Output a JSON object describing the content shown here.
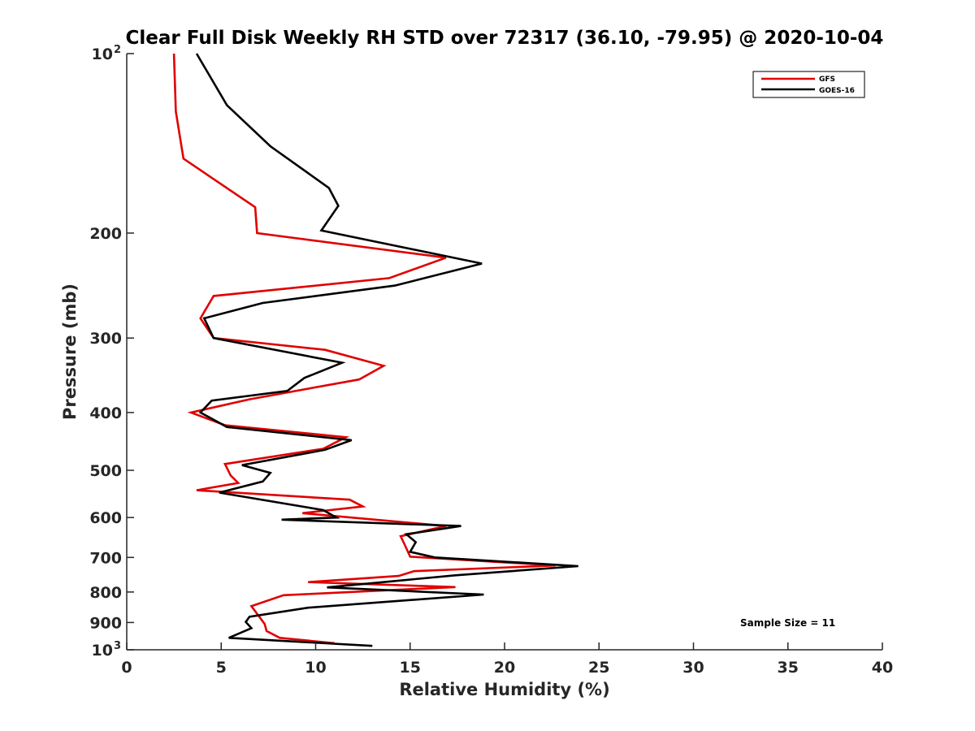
{
  "chart_data": {
    "type": "line",
    "title": "Clear Full Disk Weekly RH STD over 72317 (36.10, -79.95) @ 2020-10-04",
    "xlabel": "Relative Humidity (%)",
    "ylabel": "Pressure (mb)",
    "xlim": [
      0,
      40
    ],
    "ylim": [
      100,
      1000
    ],
    "y_scale": "log",
    "y_reversed": true,
    "grid": false,
    "legend_position": "top-right",
    "x_ticks": [
      "0",
      "5",
      "10",
      "15",
      "20",
      "25",
      "30",
      "35",
      "40"
    ],
    "y_ticks": [
      {
        "value": 100,
        "base": "10",
        "exp": "2"
      },
      {
        "value": 200,
        "label": "200"
      },
      {
        "value": 300,
        "label": "300"
      },
      {
        "value": 400,
        "label": "400"
      },
      {
        "value": 500,
        "label": "500"
      },
      {
        "value": 600,
        "label": "600"
      },
      {
        "value": 700,
        "label": "700"
      },
      {
        "value": 800,
        "label": "800"
      },
      {
        "value": 900,
        "label": "900"
      },
      {
        "value": 1000,
        "base": "10",
        "exp": "3"
      }
    ],
    "annotation": "Sample Size = 11",
    "series": [
      {
        "name": "GFS",
        "color": "#e00000",
        "pressure": [
          100,
          125,
          150,
          200,
          200,
          225,
          250,
          275,
          300,
          300,
          325,
          350,
          375,
          400,
          400,
          425,
          450,
          475,
          500,
          525,
          550,
          575,
          600,
          625,
          650,
          675,
          700,
          725,
          750,
          775,
          800,
          825,
          850,
          875,
          900,
          925,
          950,
          975
        ],
        "values": [
          2.5,
          2.6,
          3.0,
          6.8,
          6.9,
          16.9,
          13.9,
          4.6,
          3.9,
          4.6,
          10.5,
          13.6,
          12.3,
          6.5,
          3.4,
          5.2,
          11.6,
          10.4,
          5.2,
          5.5,
          5.9,
          3.7,
          11.8,
          12.5,
          9.3,
          16.9,
          14.5,
          14.7,
          15.0,
          22.7,
          15.2,
          14.4,
          9.6,
          17.4,
          8.3,
          6.6,
          7.3,
          7.4,
          8.1,
          11.0
        ],
        "pressure_full": [
          100,
          125,
          150,
          181,
          200,
          220,
          238,
          255,
          278,
          300,
          314,
          334,
          352,
          380,
          400,
          420,
          440,
          460,
          488,
          510,
          525,
          540,
          560,
          575,
          590,
          620,
          645,
          665,
          698,
          722,
          738,
          752,
          770,
          785,
          810,
          845,
          905,
          930,
          955,
          975
        ],
        "note": "pressure_full pairs with values"
      },
      {
        "name": "GOES-16",
        "color": "#000000",
        "values": [
          3.7,
          5.3,
          7.6,
          10.7,
          11.2,
          10.3,
          18.8,
          14.2,
          7.2,
          4.1,
          4.6,
          11.4,
          9.4,
          8.5,
          4.5,
          3.9,
          5.3,
          11.9,
          10.5,
          6.1,
          7.6,
          7.2,
          4.9,
          10.4,
          11.1,
          8.2,
          17.7,
          14.8,
          15.3,
          15.0,
          16.3,
          23.9,
          17.4,
          10.6,
          18.9,
          9.6,
          6.5,
          6.3,
          6.6,
          5.4,
          13.0
        ],
        "pressure_full": [
          100,
          122,
          143,
          168,
          180,
          198,
          225,
          245,
          262,
          278,
          300,
          330,
          350,
          368,
          382,
          400,
          423,
          445,
          462,
          490,
          505,
          522,
          545,
          583,
          600,
          605,
          620,
          640,
          660,
          685,
          700,
          724,
          750,
          786,
          808,
          850,
          880,
          898,
          920,
          955,
          985
        ]
      }
    ]
  }
}
